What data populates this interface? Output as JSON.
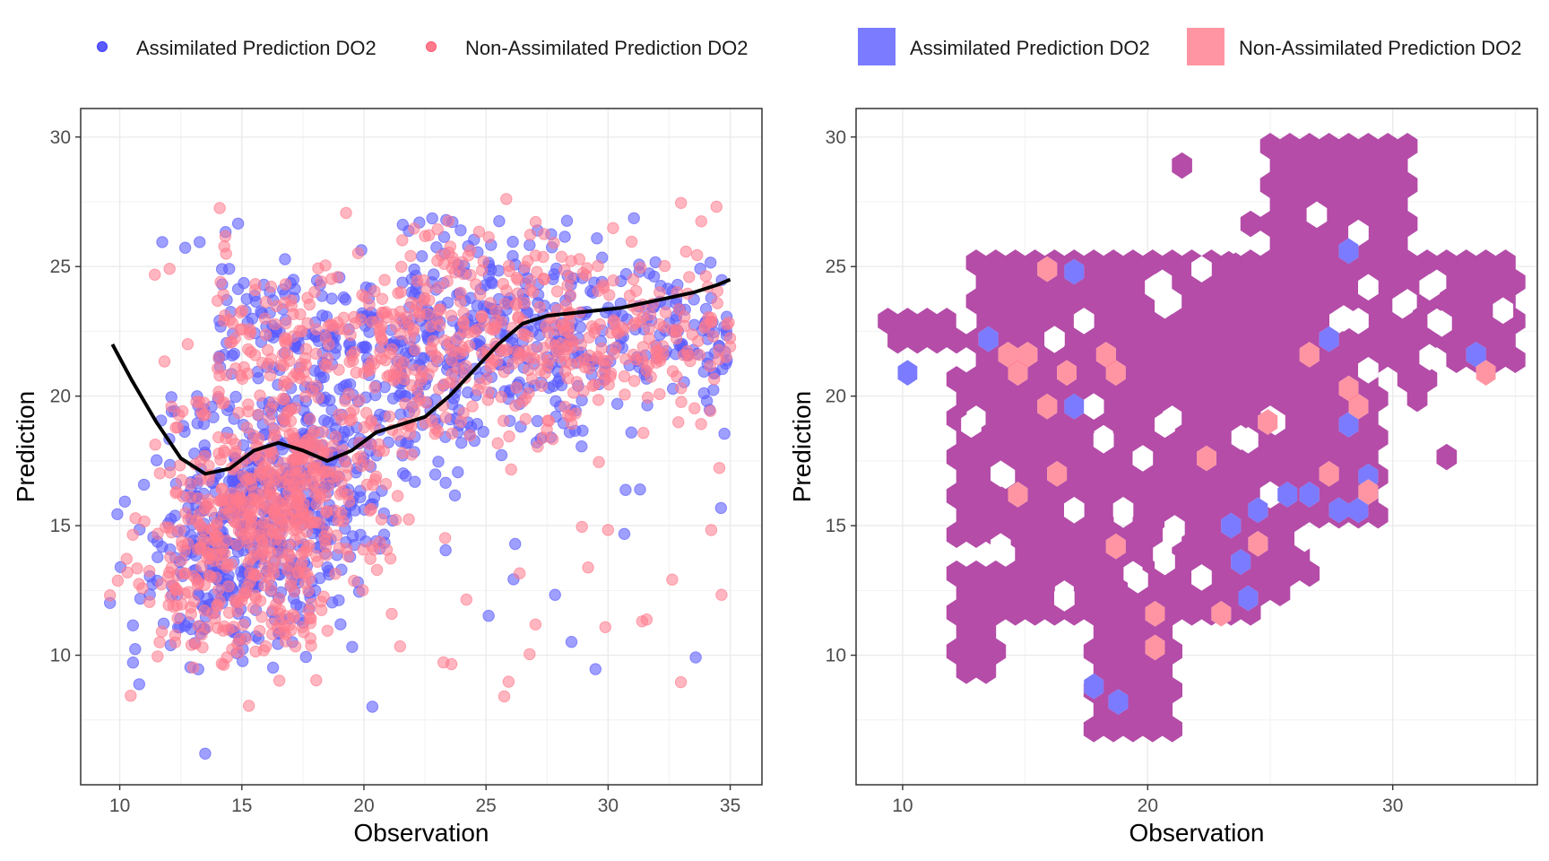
{
  "colors": {
    "assimilated": "#5a5aff",
    "non_assimilated": "#ff7a8c",
    "overlap": "#b44ca8",
    "smooth": "#000000",
    "grid": "#ebebeb",
    "panel_border": "#333333"
  },
  "chart_data": [
    {
      "type": "scatter",
      "legend": {
        "position": "top",
        "items": [
          "Assimilated Prediction DO2",
          "Non-Assimilated Prediction DO2"
        ]
      },
      "xlabel": "Observation",
      "ylabel": "Prediction",
      "xlim": [
        8.4,
        36.3
      ],
      "ylim": [
        5.0,
        31.1
      ],
      "xticks": [
        10,
        15,
        20,
        25,
        30,
        35
      ],
      "yticks": [
        10,
        15,
        20,
        25,
        30
      ],
      "grid": true,
      "smooth_line": {
        "x": [
          9.7,
          10.5,
          11.5,
          12.5,
          13.5,
          14.5,
          15.5,
          16.5,
          17.5,
          18.5,
          19.5,
          20.5,
          21.5,
          22.5,
          23.5,
          24.5,
          25.5,
          26.5,
          27.5,
          28.5,
          29.5,
          30.5,
          31.5,
          32.5,
          33.5,
          34.5,
          35.0
        ],
        "y": [
          22.0,
          20.6,
          19.0,
          17.6,
          17.0,
          17.2,
          17.9,
          18.2,
          17.9,
          17.5,
          17.9,
          18.6,
          18.9,
          19.2,
          20.0,
          21.0,
          22.0,
          22.8,
          23.1,
          23.2,
          23.3,
          23.4,
          23.6,
          23.8,
          24.0,
          24.3,
          24.5
        ]
      },
      "series": [
        {
          "name": "Assimilated Prediction DO2",
          "n_points": 1200
        },
        {
          "name": "Non-Assimilated Prediction DO2",
          "n_points": 1200
        }
      ]
    },
    {
      "type": "heatmap",
      "legend": {
        "position": "top",
        "items": [
          "Assimilated Prediction DO2",
          "Non-Assimilated Prediction DO2"
        ]
      },
      "xlabel": "Observation",
      "ylabel": "Prediction",
      "xlim": [
        8.1,
        35.9
      ],
      "ylim": [
        5.0,
        31.1
      ],
      "xticks": [
        10,
        20,
        30
      ],
      "yticks": [
        10,
        15,
        20,
        25,
        30
      ],
      "grid": true,
      "bin_width": [
        0.8,
        0.75
      ],
      "assimilated_only_bins": [
        [
          10.2,
          20.9
        ],
        [
          13.5,
          22.2
        ],
        [
          17.0,
          24.8
        ],
        [
          17.0,
          19.6
        ],
        [
          17.8,
          8.8
        ],
        [
          18.8,
          8.2
        ],
        [
          23.4,
          15.0
        ],
        [
          23.8,
          13.6
        ],
        [
          24.1,
          12.2
        ],
        [
          24.5,
          15.6
        ],
        [
          25.7,
          16.2
        ],
        [
          26.6,
          16.2
        ],
        [
          27.4,
          22.2
        ],
        [
          28.2,
          25.6
        ],
        [
          27.8,
          15.6
        ],
        [
          28.6,
          15.6
        ],
        [
          28.2,
          18.9
        ],
        [
          29.0,
          16.9
        ],
        [
          33.4,
          21.6
        ]
      ],
      "non_assimilated_only_bins": [
        [
          14.3,
          21.6
        ],
        [
          14.7,
          20.9
        ],
        [
          15.1,
          21.6
        ],
        [
          14.7,
          16.2
        ],
        [
          15.9,
          19.6
        ],
        [
          15.9,
          24.9
        ],
        [
          16.3,
          17.0
        ],
        [
          16.7,
          20.9
        ],
        [
          18.3,
          21.6
        ],
        [
          18.7,
          20.9
        ],
        [
          18.7,
          14.2
        ],
        [
          20.3,
          11.6
        ],
        [
          20.3,
          10.3
        ],
        [
          22.4,
          17.6
        ],
        [
          23.0,
          11.6
        ],
        [
          24.5,
          14.3
        ],
        [
          24.9,
          19.0
        ],
        [
          26.6,
          21.6
        ],
        [
          27.4,
          17.0
        ],
        [
          28.2,
          20.3
        ],
        [
          28.6,
          19.6
        ],
        [
          29.0,
          16.3
        ],
        [
          33.8,
          20.9
        ]
      ],
      "empty_holes": [
        [
          16.2,
          22.2
        ],
        [
          17.4,
          22.9
        ],
        [
          17.8,
          19.6
        ],
        [
          20.3,
          24.2
        ],
        [
          20.7,
          18.9
        ],
        [
          20.7,
          23.5
        ],
        [
          22.2,
          24.9
        ],
        [
          18.2,
          18.3
        ],
        [
          19.8,
          17.6
        ],
        [
          21.1,
          14.9
        ],
        [
          20.7,
          13.6
        ],
        [
          24.1,
          18.3
        ],
        [
          25.2,
          19.0
        ],
        [
          17.0,
          15.6
        ],
        [
          14.0,
          17.0
        ],
        [
          12.8,
          18.9
        ],
        [
          19.0,
          15.6
        ],
        [
          26.9,
          27.0
        ],
        [
          28.6,
          26.3
        ],
        [
          29.0,
          24.2
        ],
        [
          30.4,
          23.5
        ],
        [
          31.5,
          24.2
        ],
        [
          28.6,
          22.9
        ],
        [
          31.0,
          18.2
        ],
        [
          14.0,
          14.2
        ],
        [
          23.5,
          26.0
        ],
        [
          25.0,
          16.2
        ],
        [
          28.0,
          23.0
        ],
        [
          16.6,
          12.2
        ],
        [
          19.6,
          12.9
        ],
        [
          22.2,
          13.0
        ],
        [
          26.4,
          14.5
        ],
        [
          31.5,
          21.5
        ],
        [
          34.5,
          23.3
        ],
        [
          12.6,
          22.9
        ],
        [
          32.0,
          22.8
        ],
        [
          29.0,
          21.0
        ]
      ]
    }
  ]
}
